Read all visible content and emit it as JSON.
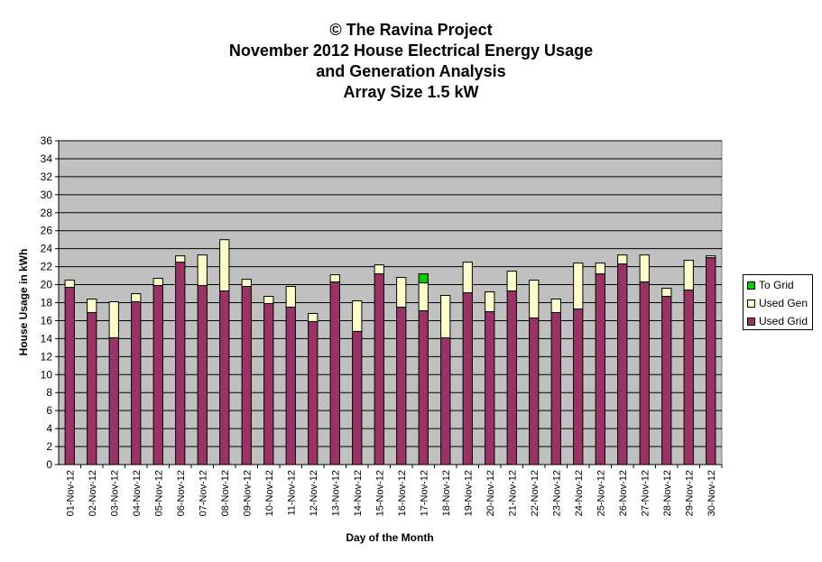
{
  "chart_data": {
    "type": "bar",
    "stacked": true,
    "title_lines": [
      "© The Ravina Project",
      "November 2012 House Electrical Energy Usage",
      "and Generation Analysis",
      "Array Size 1.5 kW"
    ],
    "xlabel": "Day of the Month",
    "ylabel": "House Usage in kWh",
    "ylim": [
      0,
      36
    ],
    "yticks": [
      0,
      2,
      4,
      6,
      8,
      10,
      12,
      14,
      16,
      18,
      20,
      22,
      24,
      26,
      28,
      30,
      32,
      34,
      36
    ],
    "grid": true,
    "legend_position": "right",
    "categories": [
      "01-Nov-12",
      "02-Nov-12",
      "03-Nov-12",
      "04-Nov-12",
      "05-Nov-12",
      "06-Nov-12",
      "07-Nov-12",
      "08-Nov-12",
      "09-Nov-12",
      "10-Nov-12",
      "11-Nov-12",
      "12-Nov-12",
      "13-Nov-12",
      "14-Nov-12",
      "15-Nov-12",
      "16-Nov-12",
      "17-Nov-12",
      "18-Nov-12",
      "19-Nov-12",
      "20-Nov-12",
      "21-Nov-12",
      "22-Nov-12",
      "23-Nov-12",
      "24-Nov-12",
      "25-Nov-12",
      "26-Nov-12",
      "27-Nov-12",
      "28-Nov-12",
      "29-Nov-12",
      "30-Nov-12"
    ],
    "series": [
      {
        "name": "Used Grid",
        "color": "#993366",
        "values": [
          19.7,
          16.9,
          14.1,
          18.1,
          19.9,
          22.5,
          19.9,
          19.3,
          19.8,
          17.9,
          17.5,
          15.9,
          20.3,
          14.8,
          21.2,
          17.5,
          17.1,
          14.1,
          19.1,
          17.0,
          19.3,
          16.3,
          16.9,
          17.3,
          21.2,
          22.3,
          20.3,
          18.7,
          19.4,
          23.0
        ]
      },
      {
        "name": "Used Gen",
        "color": "#FFFFCC",
        "values": [
          0.8,
          1.5,
          4.0,
          0.9,
          0.8,
          0.7,
          3.4,
          5.7,
          0.8,
          0.8,
          2.3,
          0.9,
          0.8,
          3.4,
          1.0,
          3.3,
          3.1,
          4.7,
          3.4,
          2.2,
          2.2,
          4.2,
          1.5,
          5.1,
          1.2,
          1.0,
          3.0,
          0.9,
          3.3,
          0.2
        ]
      },
      {
        "name": "To Grid",
        "color": "#00CC00",
        "values": [
          0,
          0,
          0,
          0,
          0,
          0,
          0,
          0,
          0,
          0,
          0,
          0,
          0,
          0,
          0,
          0,
          1.0,
          0,
          0,
          0,
          0,
          0,
          0,
          0,
          0,
          0,
          0,
          0,
          0,
          0
        ]
      }
    ],
    "legend_order": [
      "To Grid",
      "Used Gen",
      "Used Grid"
    ],
    "plot_background": "#C0C0C0"
  }
}
